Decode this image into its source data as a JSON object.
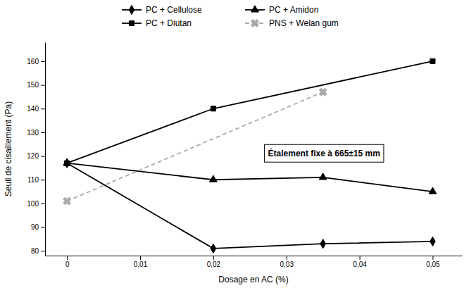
{
  "chart_data": {
    "type": "line",
    "xlabel": "Dosage en AC (%)",
    "ylabel": "Seuil de cisaillement (Pa)",
    "xlim": [
      -0.003,
      0.054
    ],
    "ylim": [
      78,
      168
    ],
    "xticks": [
      0,
      {
        "value": 0.01,
        "label": "0,01"
      },
      {
        "value": 0.02,
        "label": "0,02"
      },
      {
        "value": 0.03,
        "label": "0,03"
      },
      {
        "value": 0.04,
        "label": "0,04"
      },
      {
        "value": 0.05,
        "label": "0,05"
      }
    ],
    "yticks": [
      80,
      90,
      100,
      110,
      120,
      130,
      140,
      150,
      160
    ],
    "legend": "top",
    "series": [
      {
        "name": "PC + Cellulose",
        "color": "#000000",
        "marker": "diamond",
        "line_style": "solid",
        "x": [
          0,
          0.02,
          0.035,
          0.05
        ],
        "values": [
          117,
          81,
          83,
          84
        ]
      },
      {
        "name": "PC + Diutan",
        "color": "#000000",
        "marker": "square",
        "line_style": "solid",
        "x": [
          0,
          0.02,
          0.05
        ],
        "values": [
          117,
          140,
          160
        ]
      },
      {
        "name": "PC + Amidon",
        "color": "#000000",
        "marker": "triangle",
        "line_style": "solid",
        "x": [
          0,
          0.02,
          0.035,
          0.05
        ],
        "values": [
          117,
          110,
          111,
          105
        ]
      },
      {
        "name": "PNS + Welan gum",
        "color": "#aaaaaa",
        "marker": "x",
        "line_style": "dashed",
        "x": [
          0,
          0.035
        ],
        "values": [
          101,
          147
        ]
      }
    ],
    "annotations": [
      {
        "text": "Étalement fixe à 665±15 mm",
        "x": 0.027,
        "y": 121
      }
    ]
  }
}
